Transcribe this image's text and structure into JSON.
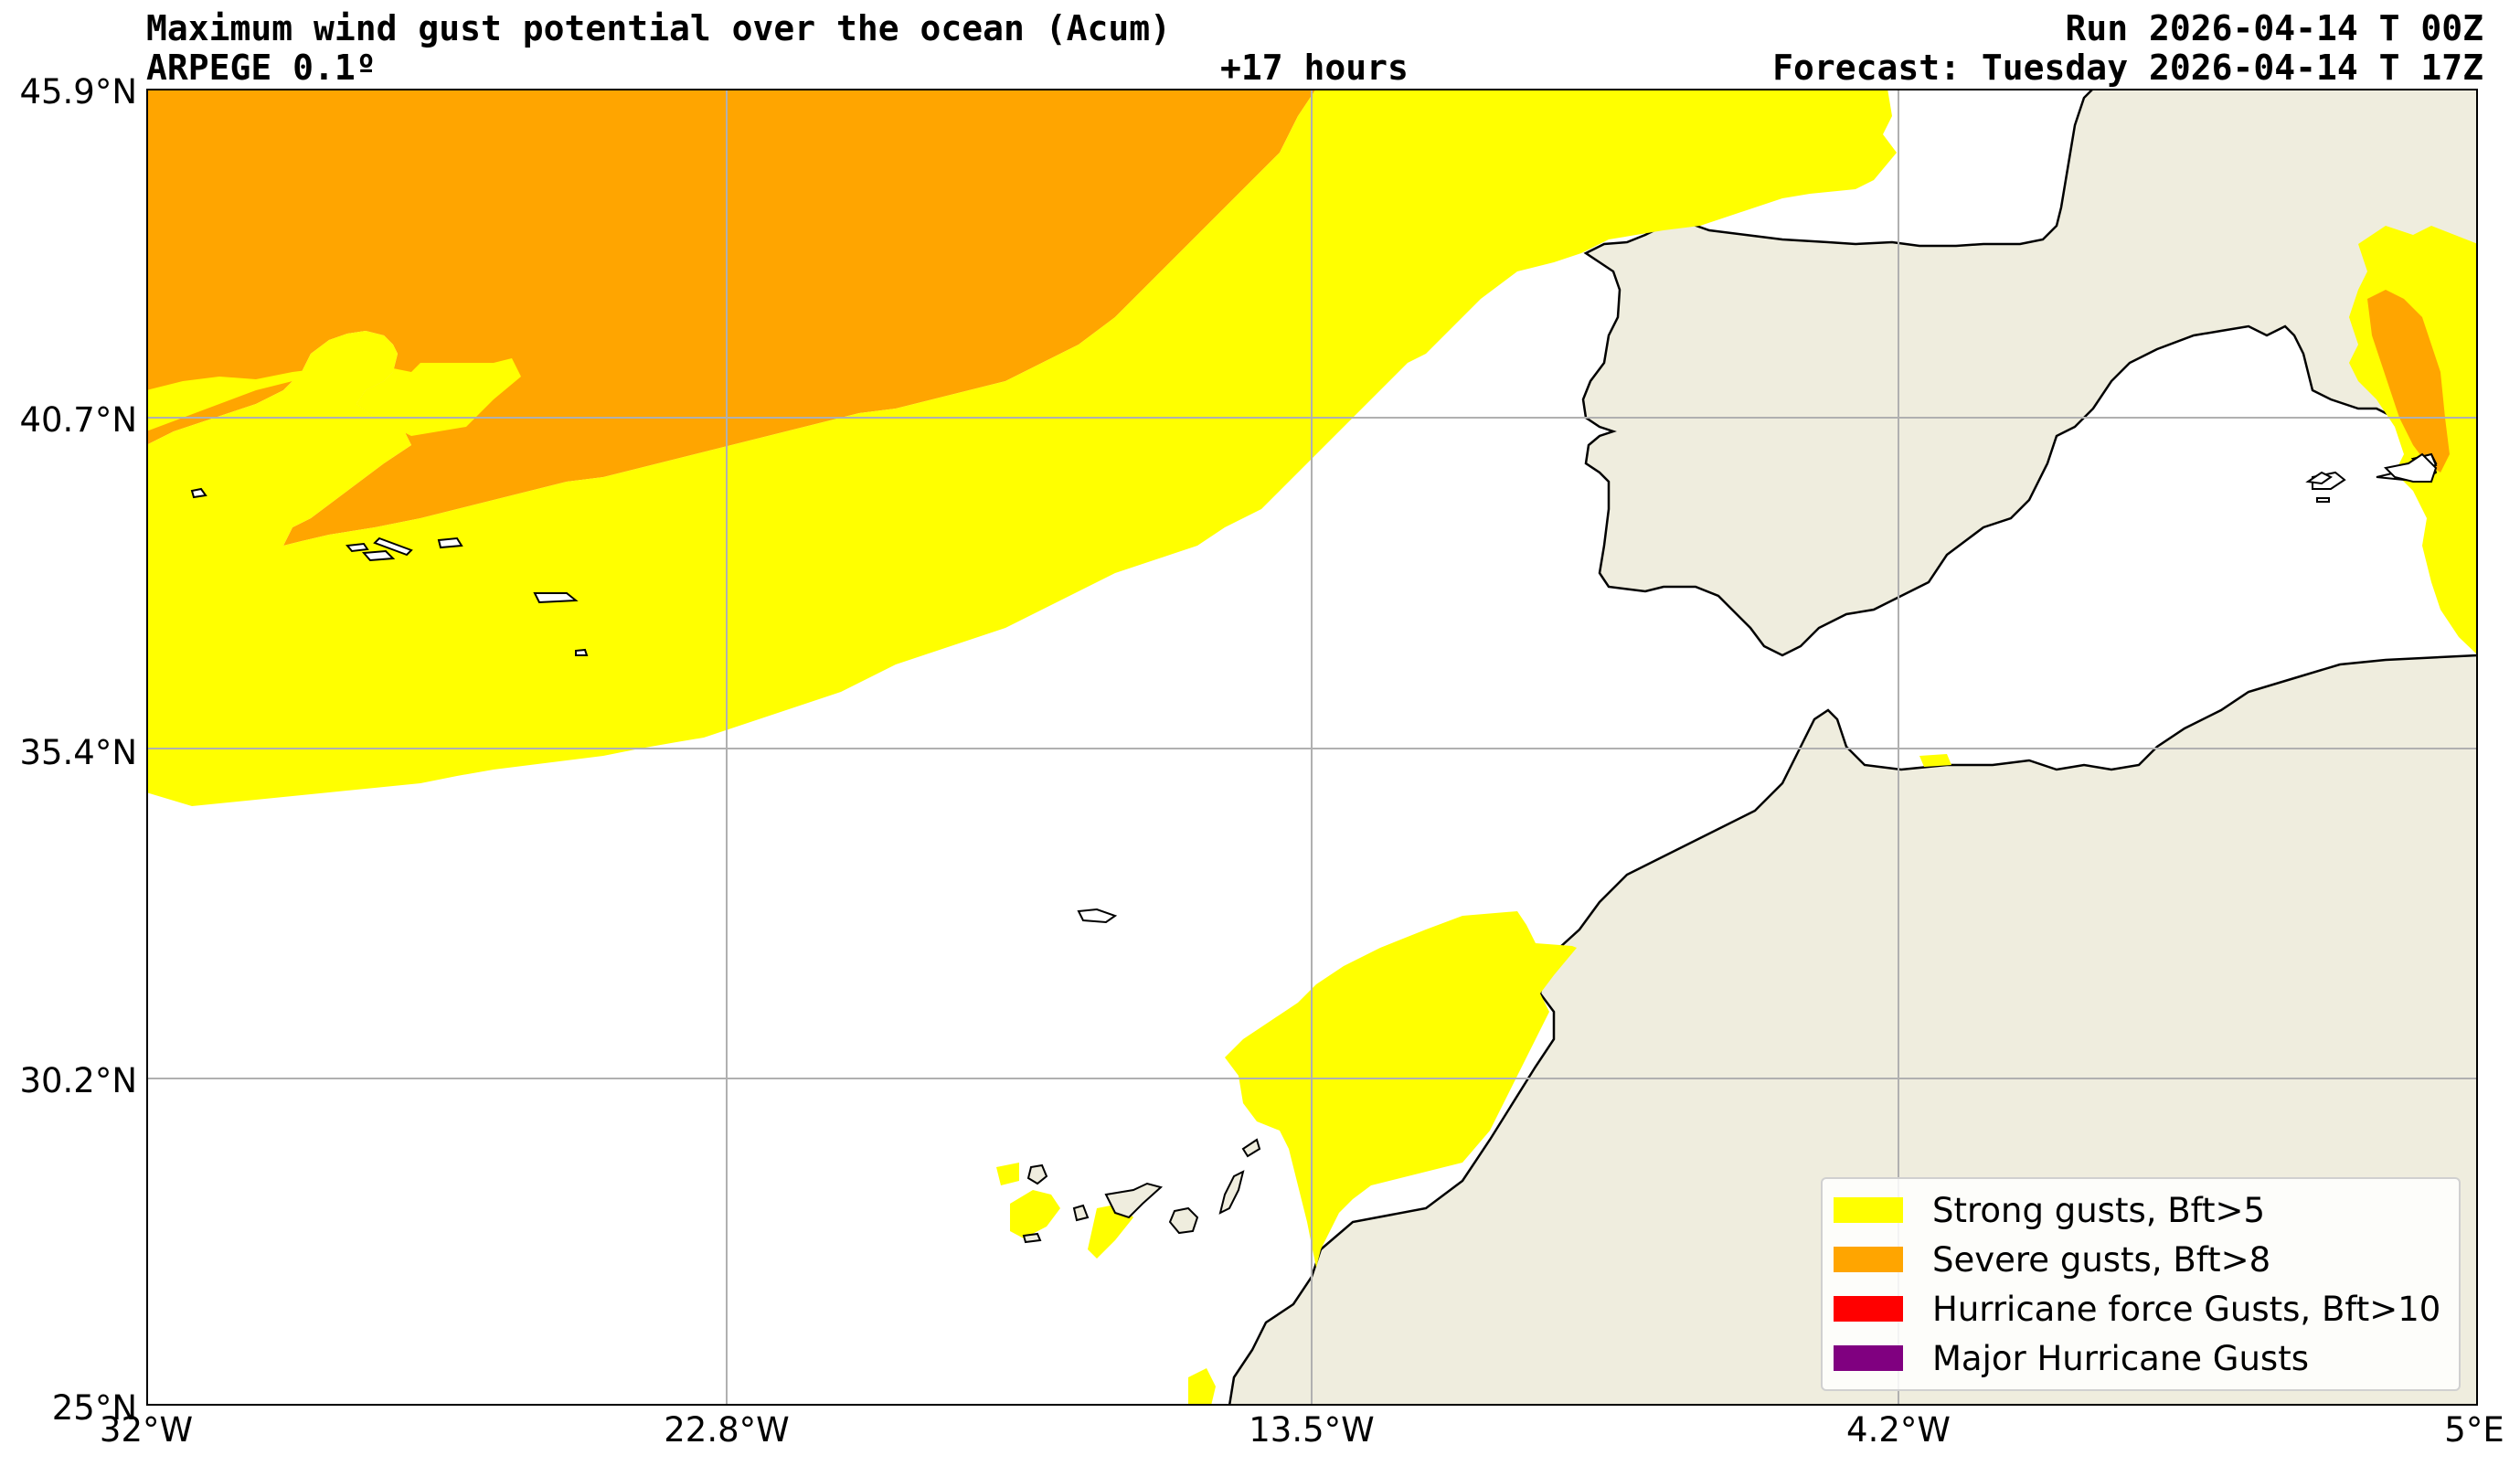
{
  "header": {
    "title": "Maximum wind gust potential over the ocean (Acum)",
    "model": "ARPEGE 0.1º",
    "lead": "+17 hours",
    "run": "Run 2026-04-14 T 00Z",
    "forecast": "Forecast: Tuesday 2026-04-14 T 17Z"
  },
  "axes": {
    "y_ticks": [
      "45.9°N",
      "40.7°N",
      "35.4°N",
      "30.2°N",
      "25°N"
    ],
    "x_ticks": [
      "32°W",
      "22.8°W",
      "13.5°W",
      "4.2°W",
      "5°E"
    ],
    "lat_range": [
      25,
      45.9
    ],
    "lon_range": [
      -32,
      5
    ],
    "grid": true
  },
  "legend": {
    "items": [
      {
        "label": "Strong gusts, Bft>5",
        "color": "#ffff00"
      },
      {
        "label": "Severe gusts, Bft>8",
        "color": "#ffa500"
      },
      {
        "label": "Hurricane force Gusts, Bft>10",
        "color": "#ff0000"
      },
      {
        "label": "Major Hurricane Gusts",
        "color": "#800080"
      }
    ]
  },
  "colors": {
    "land": "#efedde",
    "strong": "#ffff00",
    "severe": "#ffa500",
    "coast": "#000000",
    "grid": "#b0b0b0"
  }
}
